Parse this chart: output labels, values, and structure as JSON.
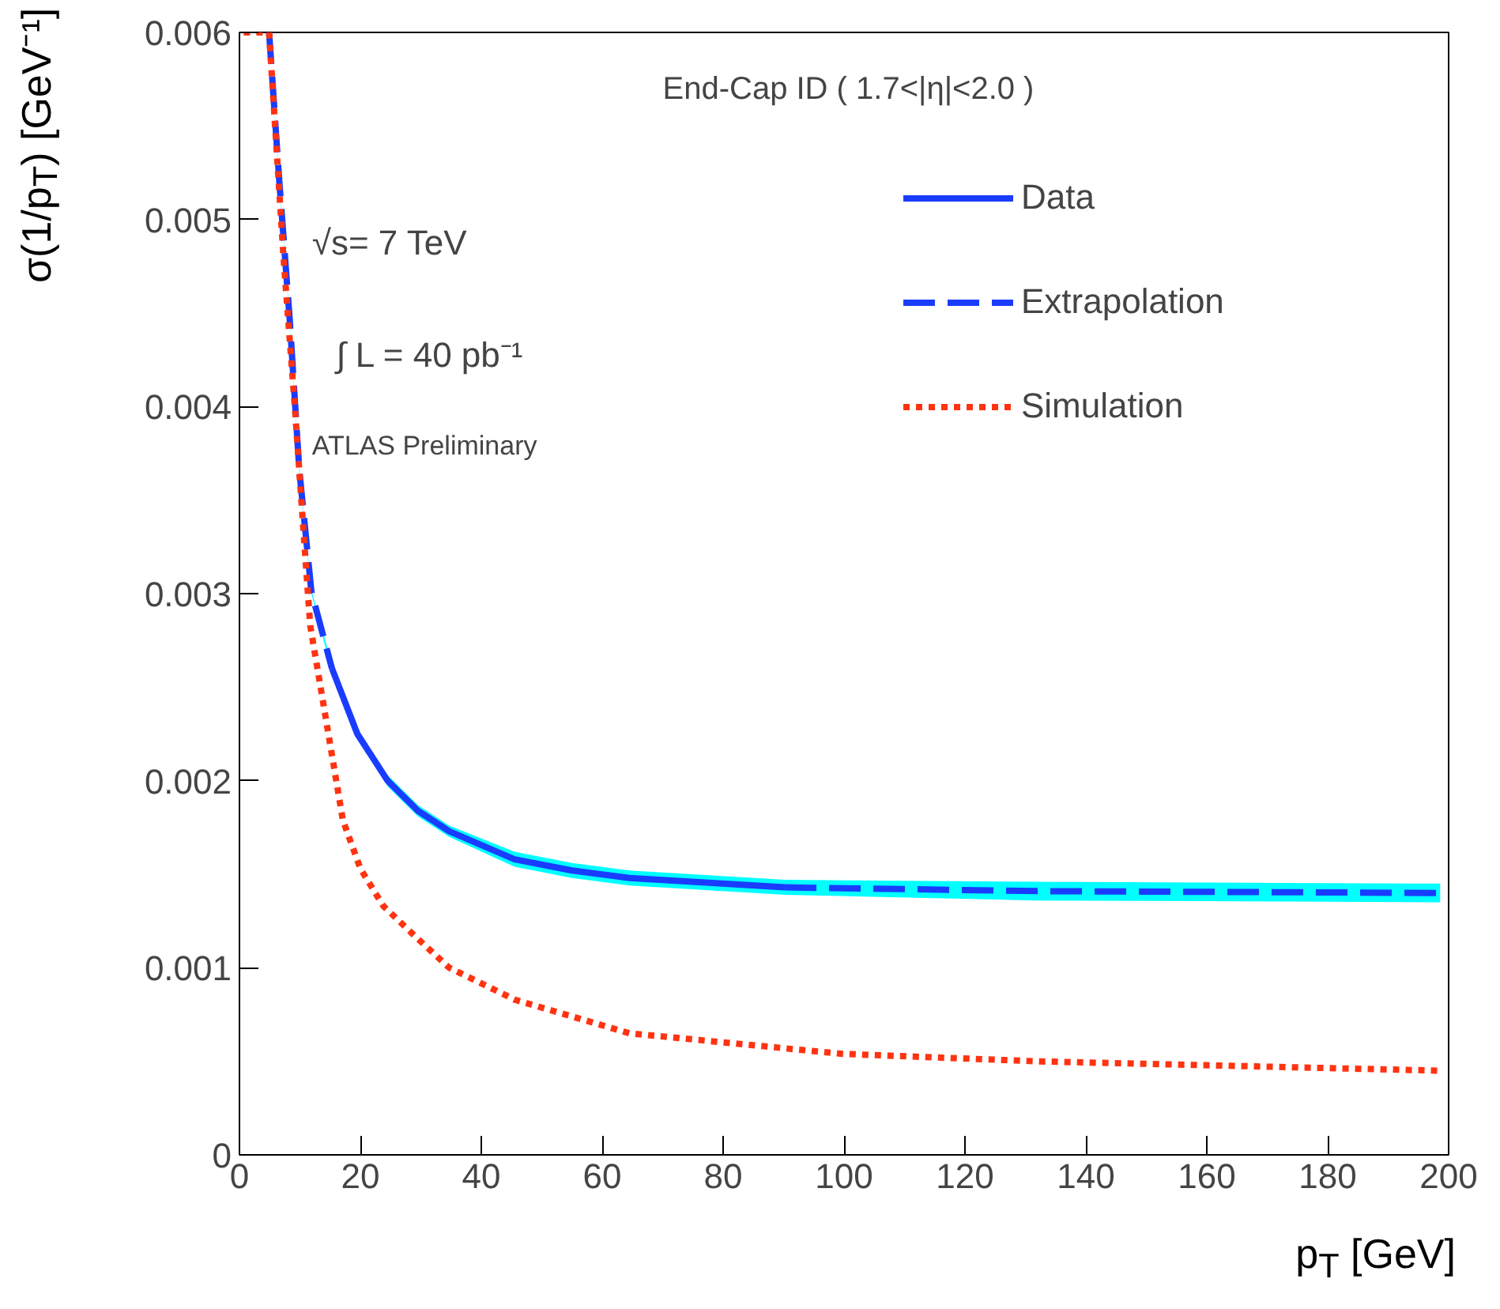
{
  "chart_data": {
    "type": "line",
    "xlabel": "p$_{T}$ [GeV]",
    "ylabel": "σ(1/p$_{T}$) [GeV⁻¹]",
    "annotations": [
      "End-Cap ID ( 1.7<|η|<2.0 )",
      "√s= 7 TeV",
      "∫ L = 40 pb⁻¹",
      "ATLAS Preliminary"
    ],
    "xlim": [
      0,
      200
    ],
    "ylim": [
      0,
      0.006
    ],
    "xticks": [
      0,
      20,
      40,
      60,
      80,
      100,
      120,
      140,
      160,
      180,
      200
    ],
    "yticks": [
      0,
      0.001,
      0.002,
      0.003,
      0.004,
      0.005,
      0.006
    ],
    "grid": false,
    "legend": "top right",
    "series": [
      {
        "name": "Data",
        "color": "#1a3cff",
        "line_style": "solid",
        "x": [
          15.3,
          19.5,
          24.5,
          29.5,
          34.7,
          45.5,
          55,
          64.5,
          90.2
        ],
        "values": [
          0.0026,
          0.00225,
          0.002,
          0.00184,
          0.00173,
          0.00158,
          0.00152,
          0.00148,
          0.00143
        ],
        "lower": [
          0.00258,
          0.00223,
          0.00197,
          0.00181,
          0.0017,
          0.00154,
          0.00148,
          0.00144,
          0.00139
        ],
        "upper": [
          0.00262,
          0.00227,
          0.00203,
          0.00187,
          0.00176,
          0.00162,
          0.00156,
          0.00152,
          0.00147
        ]
      },
      {
        "name": "Extrapolation",
        "color": "#1a3cff",
        "line_style": "dashed",
        "x": [
          4.9,
          6.6,
          8.3,
          9.9,
          11.9,
          15.3,
          50,
          90.2,
          132,
          198.6
        ],
        "values": [
          0.006,
          0.0052,
          0.00447,
          0.00366,
          0.00301,
          0.0026,
          null,
          0.00143,
          0.00141,
          0.0014
        ],
        "lower": [
          0.006,
          0.00519,
          0.00446,
          0.00365,
          0.003,
          0.00258,
          null,
          0.00139,
          0.00136,
          0.00135
        ],
        "upper": [
          0.006,
          0.00521,
          0.00448,
          0.00367,
          0.00302,
          0.00262,
          null,
          0.00147,
          0.00146,
          0.00145
        ]
      },
      {
        "name": "Simulation",
        "color": "#ff3311",
        "line_style": "dotted",
        "x": [
          0.7,
          4.9,
          7.3,
          9.2,
          10.6,
          11.7,
          13,
          17.1,
          20,
          23.8,
          29,
          34.7,
          45.5,
          64.5,
          99.7,
          132,
          198.6
        ],
        "values": [
          0.006,
          0.006,
          0.00479,
          0.00398,
          0.00333,
          0.00283,
          0.00258,
          0.00179,
          0.00153,
          0.00133,
          0.00117,
          0.001,
          0.00083,
          0.00065,
          0.00054,
          0.0005,
          0.00045
        ]
      }
    ]
  }
}
